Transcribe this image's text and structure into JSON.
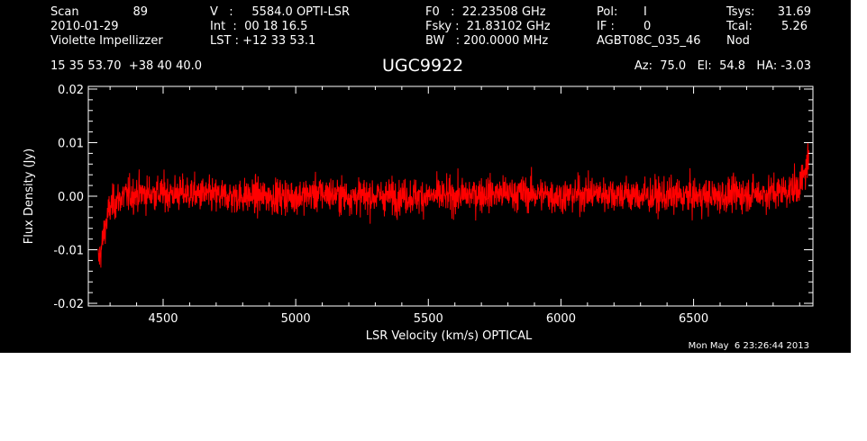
{
  "header": {
    "scan_label": "Scan",
    "scan_value": "89",
    "date": "2010-01-29",
    "observer": "Violette Impellizzer",
    "v_line": "V   :     5584.0 OPTI-LSR",
    "int_line": "Int  :  00 18 16.5",
    "lst_line": "LST : +12 33 53.1",
    "f0_line": "F0   :  22.23508 GHz",
    "fsky_line": "Fsky :  21.83102 GHz",
    "bw_line": "BW   : 200.0000 MHz",
    "pol_label": "Pol:",
    "pol_value": "I",
    "if_label": "IF :",
    "if_value": "0",
    "project": "AGBT08C_035_46",
    "tsys_label": "Tsys:",
    "tsys_value": "31.69",
    "tcal_label": "Tcal:",
    "tcal_value": "5.26",
    "mode": "Nod",
    "coords": "15 35 53.70  +38 40 40.0",
    "source": "UGC9922",
    "az_el_ha": "Az:  75.0   El:  54.8   HA: -3.03"
  },
  "footer": {
    "timestamp": "Mon May  6 23:26:44 2013"
  },
  "colors": {
    "background": "#000000",
    "foreground": "#ffffff",
    "trace": "#ff0000"
  },
  "chart_data": {
    "type": "line",
    "xlabel": "LSR Velocity (km/s) OPTICAL",
    "ylabel": "Flux Density (Jy)",
    "xlim": [
      4218,
      6950
    ],
    "ylim": [
      -0.0205,
      0.0205
    ],
    "x_ticks": [
      4500,
      5000,
      5500,
      6000,
      6500
    ],
    "x_tick_labels": [
      "4500",
      "5000",
      "5500",
      "6000",
      "6500"
    ],
    "y_ticks": [
      -0.02,
      -0.01,
      0.0,
      0.01,
      0.02
    ],
    "y_tick_labels": [
      "-0.02",
      "-0.01",
      "0.00",
      "0.01",
      "0.02"
    ],
    "series": [
      {
        "color": "#ff0000",
        "noise_rms": 0.0023,
        "x": [
          4255,
          4262,
          4270,
          4280,
          4290,
          4300,
          4320,
          4350,
          4400,
          4500,
          4600,
          4700,
          4800,
          4900,
          5000,
          5100,
          5200,
          5300,
          5400,
          5500,
          5600,
          5700,
          5800,
          5900,
          6000,
          6100,
          6200,
          6300,
          6400,
          6500,
          6600,
          6700,
          6780,
          6840,
          6880,
          6900,
          6910,
          6920,
          6930,
          6935
        ],
        "y": [
          -0.012,
          -0.011,
          -0.009,
          -0.006,
          -0.004,
          -0.002,
          -0.001,
          0.0,
          0.0005,
          0.0005,
          0.0005,
          0.0,
          0.0,
          0.0,
          0.0,
          0.0005,
          0.0,
          0.0,
          0.0,
          0.0,
          0.0,
          0.0005,
          0.0005,
          0.0005,
          0.0,
          0.0005,
          0.0005,
          0.0,
          0.0,
          0.0,
          0.0,
          0.0005,
          0.0005,
          0.001,
          0.0015,
          0.002,
          0.003,
          0.004,
          0.007,
          0.006
        ]
      }
    ]
  }
}
